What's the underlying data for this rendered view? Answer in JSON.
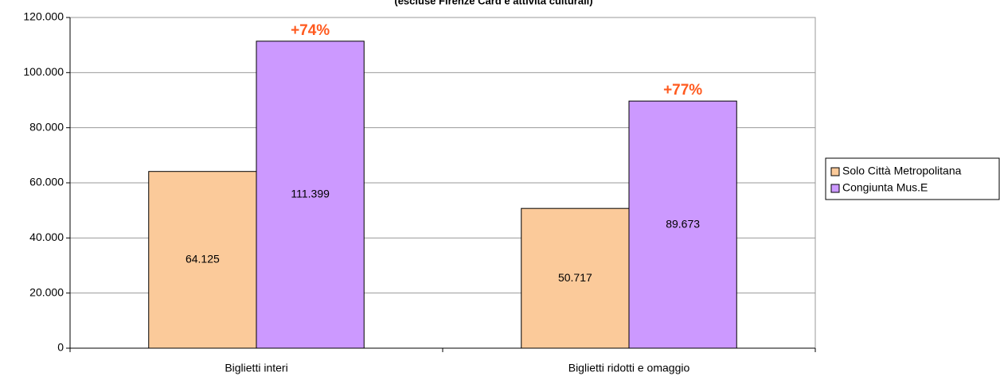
{
  "chart_data": {
    "type": "bar",
    "title": "(escluse Firenze Card e attività culturali)",
    "categories": [
      "Biglietti interi",
      "Biglietti ridotti e omaggio"
    ],
    "series": [
      {
        "name": "Solo Città Metropolitana",
        "color": "#fbca9a",
        "values": [
          64125,
          50717
        ],
        "value_labels": [
          "64.125",
          "50.717"
        ]
      },
      {
        "name": "Congiunta Mus.E",
        "color": "#cc99ff",
        "values": [
          111399,
          89673
        ],
        "value_labels": [
          "111.399",
          "89.673"
        ]
      }
    ],
    "annotations": [
      "+74%",
      "+77%"
    ],
    "annotation_color": "#ff5a1f",
    "ylim": [
      0,
      120000
    ],
    "yticks": [
      0,
      {
        "value": 20000,
        "label": "20.000"
      },
      {
        "value": 40000,
        "label": "40.000"
      },
      {
        "value": 60000,
        "label": "60.000"
      },
      {
        "value": 80000,
        "label": "80.000"
      },
      {
        "value": 100000,
        "label": "100.000"
      },
      {
        "value": 120000,
        "label": "120.000"
      }
    ],
    "grid": true,
    "legend": "right"
  }
}
